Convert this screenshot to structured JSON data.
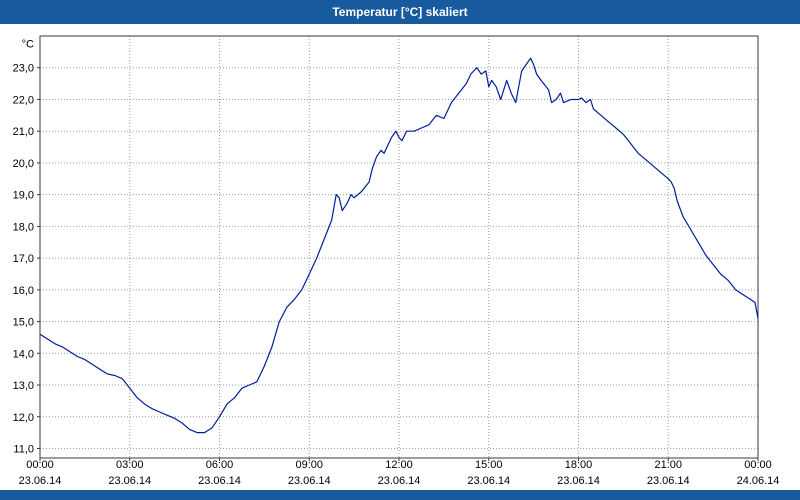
{
  "title_bar": {
    "text": "Temperatur [°C] skaliert"
  },
  "colors": {
    "title_bar_bg": "#175a9d",
    "title_text": "#ffffff",
    "line": "#001f99",
    "grid": "#9b9b9b",
    "axis": "#3a3a3a",
    "plot_bg": "#ffffff"
  },
  "chart_data": {
    "type": "line",
    "title": "Temperatur [°C] skaliert",
    "xlabel": "",
    "ylabel": "°C",
    "grid": "dotted",
    "legend": "none",
    "xlim": [
      0,
      24
    ],
    "ylim": [
      10.7,
      24.0
    ],
    "yticks": [
      11,
      12,
      13,
      14,
      15,
      16,
      17,
      18,
      19,
      20,
      21,
      22,
      23
    ],
    "ytick_labels": [
      "11,0",
      "12,0",
      "13,0",
      "14,0",
      "15,0",
      "16,0",
      "17,0",
      "18,0",
      "19,0",
      "20,0",
      "21,0",
      "22,0",
      "23,0"
    ],
    "xticks": [
      {
        "hour": 0,
        "time": "00:00",
        "date": "23.06.14"
      },
      {
        "hour": 3,
        "time": "03:00",
        "date": "23.06.14"
      },
      {
        "hour": 6,
        "time": "06:00",
        "date": "23.06.14"
      },
      {
        "hour": 9,
        "time": "09:00",
        "date": "23.06.14"
      },
      {
        "hour": 12,
        "time": "12:00",
        "date": "23.06.14"
      },
      {
        "hour": 15,
        "time": "15:00",
        "date": "23.06.14"
      },
      {
        "hour": 18,
        "time": "18:00",
        "date": "23.06.14"
      },
      {
        "hour": 21,
        "time": "21:00",
        "date": "23.06.14"
      },
      {
        "hour": 24,
        "time": "00:00",
        "date": "24.06.14"
      }
    ],
    "series": [
      {
        "name": "Temperatur",
        "color": "#001f99",
        "x": [
          0,
          0.25,
          0.5,
          0.75,
          1,
          1.25,
          1.5,
          1.75,
          2,
          2.25,
          2.5,
          2.75,
          3,
          3.25,
          3.5,
          3.75,
          4,
          4.25,
          4.5,
          4.75,
          5,
          5.25,
          5.5,
          5.75,
          6,
          6.25,
          6.5,
          6.75,
          7,
          7.25,
          7.5,
          7.75,
          8,
          8.25,
          8.5,
          8.75,
          9,
          9.25,
          9.5,
          9.75,
          9.9,
          10,
          10.1,
          10.25,
          10.4,
          10.5,
          10.75,
          11,
          11.1,
          11.25,
          11.4,
          11.5,
          11.75,
          11.9,
          12,
          12.1,
          12.25,
          12.5,
          12.75,
          13,
          13.25,
          13.5,
          13.75,
          14,
          14.25,
          14.4,
          14.5,
          14.6,
          14.75,
          14.9,
          15,
          15.1,
          15.25,
          15.4,
          15.5,
          15.6,
          15.75,
          15.9,
          16,
          16.1,
          16.25,
          16.4,
          16.5,
          16.6,
          16.75,
          17,
          17.1,
          17.25,
          17.4,
          17.5,
          17.75,
          18,
          18.1,
          18.25,
          18.4,
          18.5,
          18.75,
          19,
          19.25,
          19.5,
          19.75,
          20,
          20.25,
          20.5,
          20.75,
          21,
          21.1,
          21.2,
          21.3,
          21.5,
          21.75,
          22,
          22.25,
          22.5,
          22.75,
          23,
          23.25,
          23.5,
          23.75,
          23.9,
          24
        ],
        "y": [
          14.6,
          14.45,
          14.3,
          14.2,
          14.05,
          13.9,
          13.8,
          13.65,
          13.5,
          13.35,
          13.3,
          13.2,
          12.9,
          12.6,
          12.4,
          12.25,
          12.15,
          12.05,
          11.95,
          11.8,
          11.6,
          11.5,
          11.5,
          11.65,
          12.0,
          12.4,
          12.6,
          12.9,
          13.0,
          13.1,
          13.6,
          14.2,
          15.0,
          15.45,
          15.7,
          16.0,
          16.5,
          17.0,
          17.6,
          18.2,
          19.0,
          18.9,
          18.5,
          18.7,
          19.0,
          18.9,
          19.1,
          19.4,
          19.8,
          20.2,
          20.4,
          20.3,
          20.8,
          21.0,
          20.8,
          20.7,
          21.0,
          21.0,
          21.1,
          21.2,
          21.5,
          21.4,
          21.9,
          22.2,
          22.5,
          22.8,
          22.9,
          23.0,
          22.8,
          22.9,
          22.4,
          22.6,
          22.4,
          22.0,
          22.3,
          22.6,
          22.2,
          21.9,
          22.4,
          22.9,
          23.1,
          23.3,
          23.1,
          22.8,
          22.6,
          22.3,
          21.9,
          22.0,
          22.2,
          21.9,
          22.0,
          22.0,
          22.05,
          21.9,
          22.0,
          21.7,
          21.5,
          21.3,
          21.1,
          20.9,
          20.6,
          20.3,
          20.1,
          19.9,
          19.7,
          19.5,
          19.4,
          19.2,
          18.8,
          18.3,
          17.9,
          17.5,
          17.1,
          16.8,
          16.5,
          16.3,
          16.0,
          15.85,
          15.7,
          15.6,
          15.1
        ]
      }
    ]
  }
}
